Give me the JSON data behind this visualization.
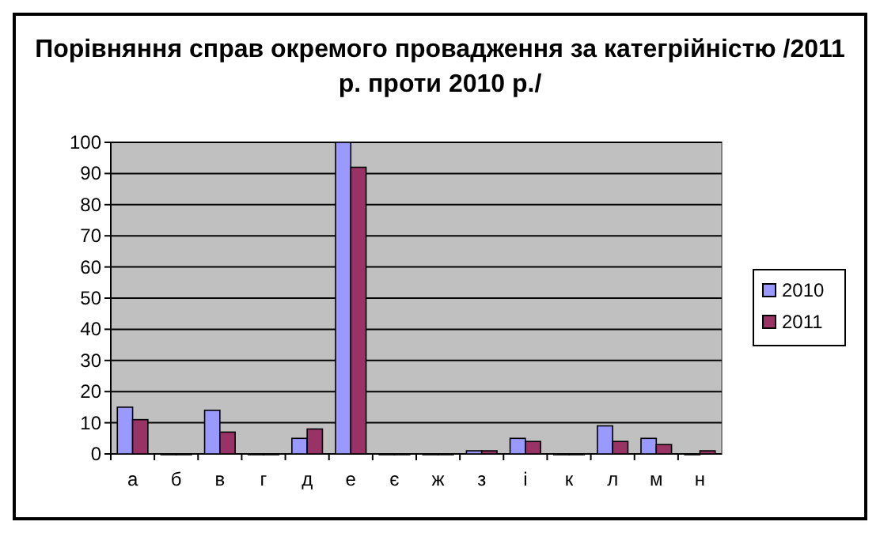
{
  "chart_data": {
    "type": "bar",
    "title": "Порівняння справ окремого провадження за категрійністю /2011 р. проти 2010 р./",
    "categories": [
      "а",
      "б",
      "в",
      "г",
      "д",
      "е",
      "є",
      "ж",
      "з",
      "і",
      "к",
      "л",
      "м",
      "н"
    ],
    "series": [
      {
        "name": "2010",
        "color": "#9999ff",
        "values": [
          15,
          0,
          14,
          0,
          5,
          100,
          0,
          0,
          1,
          5,
          0,
          9,
          5,
          0
        ]
      },
      {
        "name": "2011",
        "color": "#993366",
        "values": [
          11,
          0,
          7,
          0,
          8,
          92,
          0,
          0,
          1,
          4,
          0,
          4,
          3,
          1
        ]
      }
    ],
    "ylim": [
      0,
      100
    ],
    "yticks": [
      0,
      10,
      20,
      30,
      40,
      50,
      60,
      70,
      80,
      90,
      100
    ],
    "grid": "y",
    "legend": "right"
  }
}
